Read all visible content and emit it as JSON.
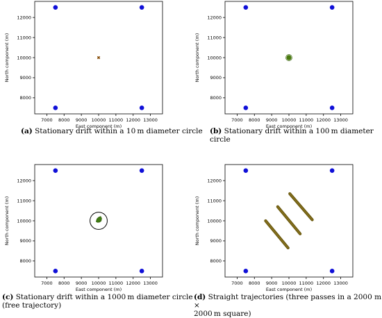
{
  "captions": [
    {
      "label": "(a)",
      "text": "Stationary drift within a 10 m diameter circle"
    },
    {
      "label": "(b)",
      "text": "Stationary drift within a 100 m diameter circle"
    },
    {
      "label": "(c)",
      "text": "Stationary drift within a 1000 m diameter circle",
      "text2": "(free trajectory)"
    },
    {
      "label": "(d)",
      "text": "Straight trajectories (three passes in a 2000 m ×",
      "text2": "2000 m square)"
    }
  ],
  "chart_data": [
    {
      "type": "scatter",
      "id": "a",
      "xlabel": "East component (m)",
      "ylabel": "North component (m)",
      "xlim": [
        6300,
        13700
      ],
      "ylim": [
        7200,
        12800
      ],
      "xticks": [
        7000,
        8000,
        9000,
        10000,
        11000,
        12000,
        13000
      ],
      "yticks": [
        8000,
        9000,
        10000,
        11000,
        12000
      ],
      "grid": false,
      "anchors": [
        [
          7500,
          12500
        ],
        [
          12500,
          12500
        ],
        [
          7500,
          7500
        ],
        [
          12500,
          7500
        ]
      ],
      "anchor_color": "#1010d8",
      "track_color": "#6b6b00",
      "trajectory": {
        "kind": "cluster",
        "center": [
          10000,
          10000
        ],
        "diameter": 10
      },
      "circle": null
    },
    {
      "type": "scatter",
      "id": "b",
      "xlabel": "East component (m)",
      "ylabel": "North component (m)",
      "xlim": [
        6300,
        13700
      ],
      "ylim": [
        7200,
        12800
      ],
      "xticks": [
        7000,
        8000,
        9000,
        10000,
        11000,
        12000,
        13000
      ],
      "yticks": [
        8000,
        9000,
        10000,
        11000,
        12000
      ],
      "grid": false,
      "anchors": [
        [
          7500,
          12500
        ],
        [
          12500,
          12500
        ],
        [
          7500,
          7500
        ],
        [
          12500,
          7500
        ]
      ],
      "anchor_color": "#1010d8",
      "track_color": "#4a7a10",
      "trajectory": {
        "kind": "cluster",
        "center": [
          10000,
          10000
        ],
        "diameter": 100
      },
      "circle": null
    },
    {
      "type": "scatter",
      "id": "c",
      "xlabel": "East component (m)",
      "ylabel": "North component (m)",
      "xlim": [
        6300,
        13700
      ],
      "ylim": [
        7200,
        12800
      ],
      "xticks": [
        7000,
        8000,
        9000,
        10000,
        11000,
        12000,
        13000
      ],
      "yticks": [
        8000,
        9000,
        10000,
        11000,
        12000
      ],
      "grid": false,
      "anchors": [
        [
          7500,
          12500
        ],
        [
          12500,
          12500
        ],
        [
          7500,
          7500
        ],
        [
          12500,
          7500
        ]
      ],
      "anchor_color": "#1010d8",
      "track_color": "#3f7a12",
      "trajectory": {
        "kind": "blob",
        "points": [
          [
            9850,
            9960
          ],
          [
            9900,
            10100
          ],
          [
            10000,
            10180
          ],
          [
            10120,
            10220
          ],
          [
            10180,
            10120
          ],
          [
            10150,
            9990
          ],
          [
            10050,
            9930
          ],
          [
            9930,
            9920
          ]
        ]
      },
      "circle": {
        "center": [
          10000,
          10000
        ],
        "diameter": 1000
      }
    },
    {
      "type": "line",
      "id": "d",
      "xlabel": "East component (m)",
      "ylabel": "North component (m)",
      "xlim": [
        6300,
        13700
      ],
      "ylim": [
        7200,
        12800
      ],
      "xticks": [
        7000,
        8000,
        9000,
        10000,
        11000,
        12000,
        13000
      ],
      "yticks": [
        8000,
        9000,
        10000,
        11000,
        12000
      ],
      "grid": false,
      "anchors": [
        [
          7500,
          12500
        ],
        [
          12500,
          12500
        ],
        [
          7500,
          7500
        ],
        [
          12500,
          7500
        ]
      ],
      "anchor_color": "#1010d8",
      "track_color": "#6b5a10",
      "passes": [
        [
          [
            8650,
            10000
          ],
          [
            9950,
            8650
          ]
        ],
        [
          [
            9350,
            10700
          ],
          [
            10650,
            9350
          ]
        ],
        [
          [
            10050,
            11350
          ],
          [
            11350,
            10050
          ]
        ]
      ],
      "circle": null
    }
  ]
}
